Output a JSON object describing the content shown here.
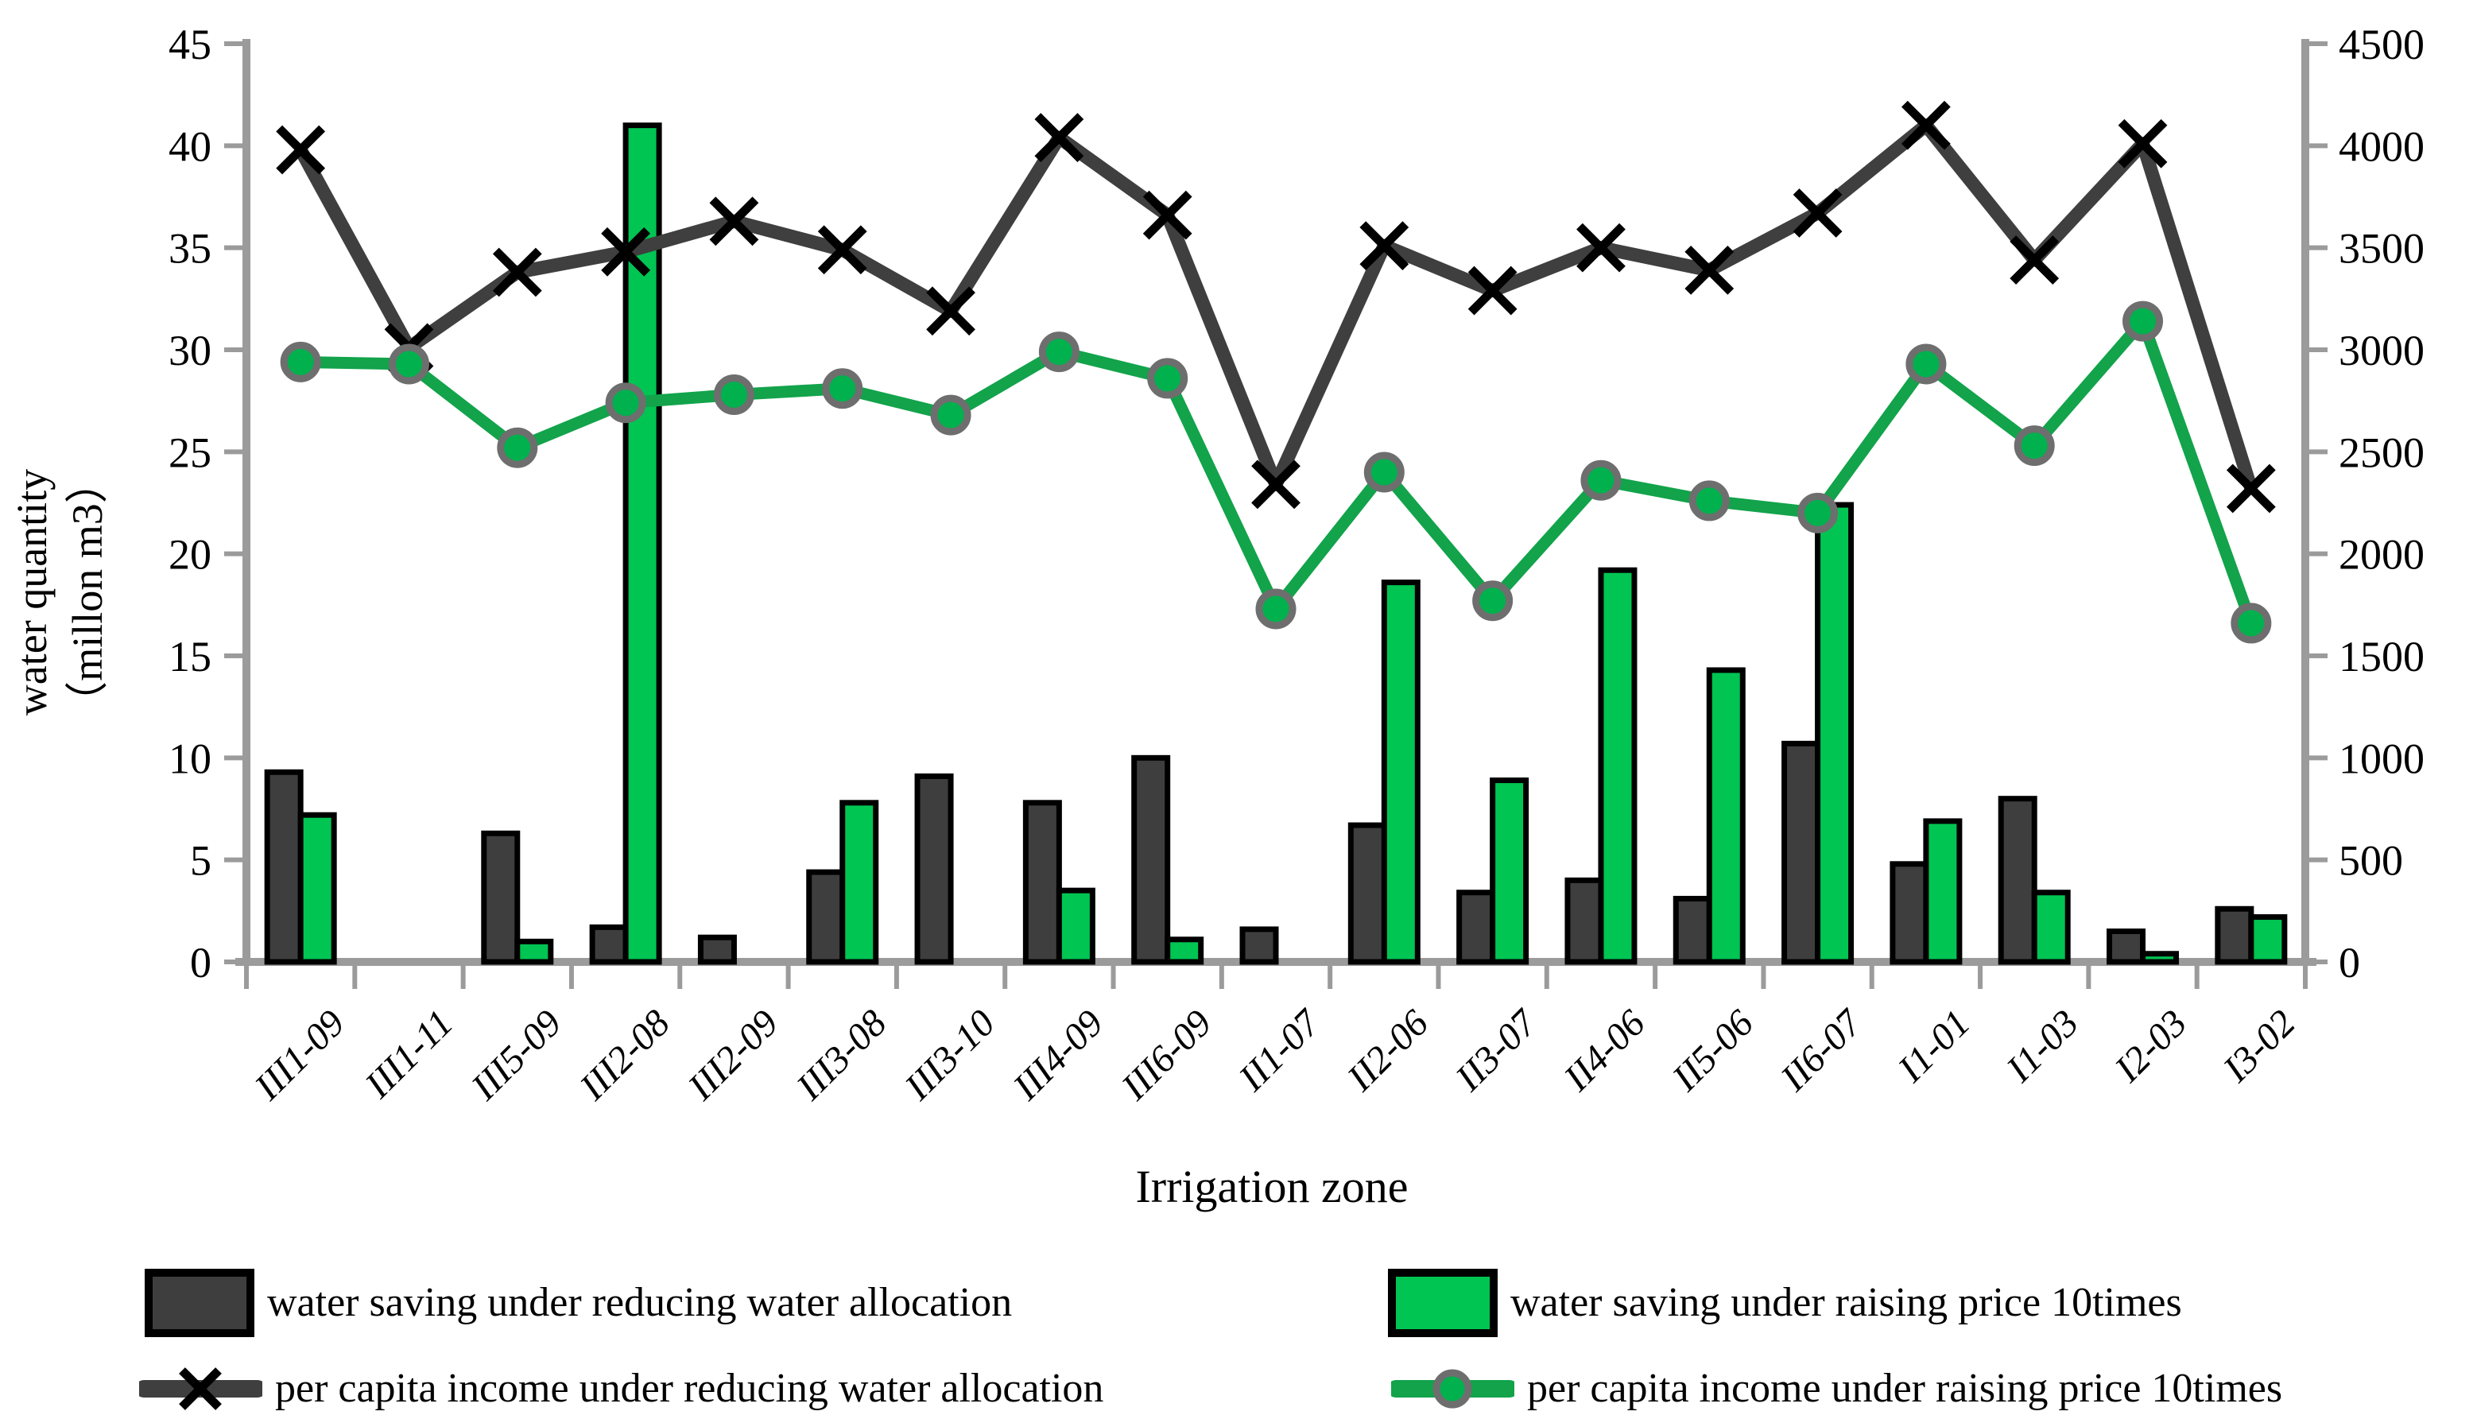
{
  "chart_data": {
    "type": "combo-bar-line",
    "title": "",
    "xlabel": "Irrigation zone",
    "grid": false,
    "legend_position": "bottom",
    "categories": [
      "III1-09",
      "III1-11",
      "III5-09",
      "III2-08",
      "III2-09",
      "III3-08",
      "III3-10",
      "III4-09",
      "III6-09",
      "II1-07",
      "II2-06",
      "II3-07",
      "II4-06",
      "II5-06",
      "II6-07",
      "I1-01",
      "I1-03",
      "I2-03",
      "I3-02"
    ],
    "left_axis": {
      "title_line1": "water quantity",
      "title_line2": "（millon m3）",
      "min": 0,
      "max": 45,
      "step": 5
    },
    "right_axis": {
      "min": 0,
      "max": 4500,
      "step": 500
    },
    "bar_series": [
      {
        "name": "water saving under reducing water allocation",
        "axis": "left",
        "fill": "#3E3E3E",
        "stroke": "#000000",
        "values": [
          9.3,
          0,
          6.3,
          1.7,
          1.2,
          4.4,
          9.1,
          7.8,
          10.0,
          1.6,
          6.7,
          3.4,
          4.0,
          3.1,
          10.7,
          4.8,
          8.0,
          1.5,
          2.6
        ]
      },
      {
        "name": "water saving under raising price 10times",
        "axis": "left",
        "fill": "#00C553",
        "stroke": "#000000",
        "values": [
          7.2,
          0,
          1.0,
          41.0,
          0,
          7.8,
          0,
          3.5,
          1.1,
          0,
          18.6,
          8.9,
          19.2,
          14.3,
          22.4,
          6.9,
          3.4,
          0.4,
          2.2
        ]
      }
    ],
    "line_series": [
      {
        "name": "per capita income under reducing water allocation",
        "axis": "right",
        "color": "#3F3F3F",
        "marker": "x",
        "marker_color": "#000000",
        "values": [
          3980,
          3010,
          3380,
          3480,
          3630,
          3490,
          3190,
          4040,
          3660,
          2340,
          3510,
          3290,
          3500,
          3390,
          3670,
          4100,
          3440,
          4010,
          2320
        ]
      },
      {
        "name": "per capita income under raising price 10times",
        "axis": "right",
        "color": "#12A34B",
        "marker": "circle",
        "marker_fill": "#00B14E",
        "marker_ring": "#6E6E6E",
        "values": [
          2940,
          2930,
          2520,
          2740,
          2780,
          2810,
          2680,
          2990,
          2860,
          1730,
          2400,
          1770,
          2360,
          2260,
          2200,
          2930,
          2530,
          3140,
          1660
        ]
      }
    ],
    "colors": {
      "axis": "#9B9B9B",
      "bar_dark": "#3E3E3E",
      "bar_green": "#00C553",
      "line_dark": "#3F3F3F",
      "line_green": "#12A34B"
    }
  }
}
